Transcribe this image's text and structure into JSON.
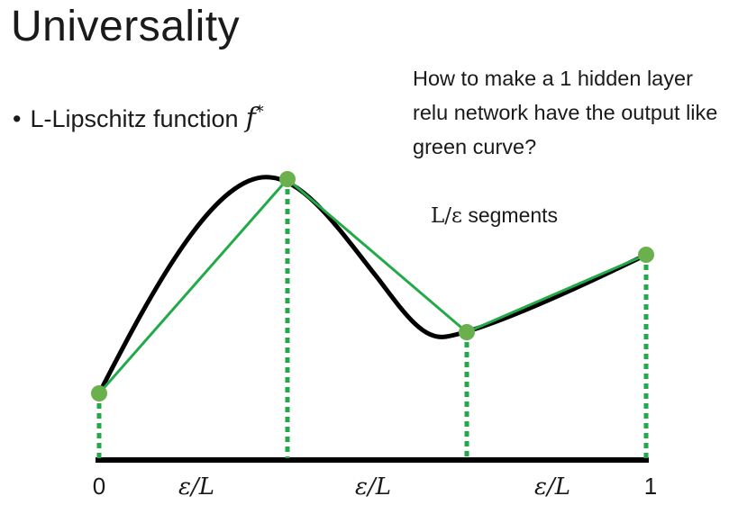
{
  "slide": {
    "title": "Universality",
    "bullet_dot": "•",
    "bullet_text": "L-Lipschitz function",
    "bullet_symbol": "f",
    "bullet_symbol_sup": "*",
    "question": "How to make a 1 hidden layer relu network have the output like green curve?",
    "segments_math": "L/ε",
    "segments_word": "segments"
  },
  "diagram": {
    "axis_tick_labels": [
      "0",
      "ε/L",
      "ε/L",
      "ε/L",
      "1"
    ],
    "colors": {
      "curve": "#000000",
      "approximation": "#22aa4a",
      "points": "#6ab04c",
      "axis": "#000000"
    }
  }
}
